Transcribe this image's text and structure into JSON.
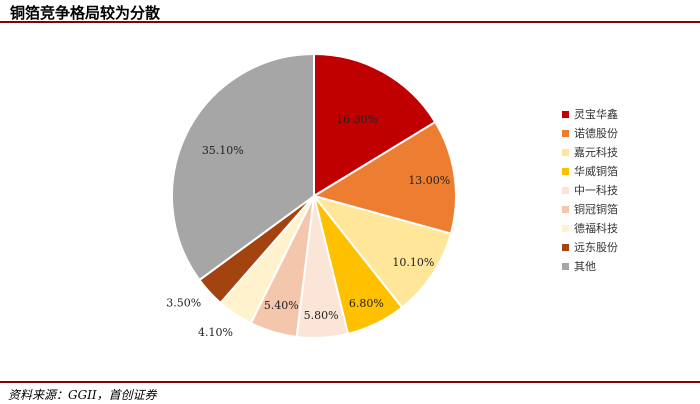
{
  "header": {
    "title": "铜箔竞争格局较为分散"
  },
  "footer": {
    "source": "资料来源：GGII，首创证券"
  },
  "chart_data": {
    "type": "pie",
    "title": "",
    "legend_position": "right",
    "slices": [
      {
        "name": "灵宝华鑫",
        "value": 16.3,
        "label": "16.30%",
        "color": "#c00000"
      },
      {
        "name": "诺德股份",
        "value": 13.0,
        "label": "13.00%",
        "color": "#ed7d31"
      },
      {
        "name": "嘉元科技",
        "value": 10.1,
        "label": "10.10%",
        "color": "#ffe699"
      },
      {
        "name": "华威铜箔",
        "value": 6.8,
        "label": "6.80%",
        "color": "#ffc000"
      },
      {
        "name": "中一科技",
        "value": 5.8,
        "label": "5.80%",
        "color": "#fbe5d6"
      },
      {
        "name": "铜冠铜箔",
        "value": 5.4,
        "label": "5.40%",
        "color": "#f4c7ac"
      },
      {
        "name": "德福科技",
        "value": 4.1,
        "label": "4.10%",
        "color": "#fff2cc"
      },
      {
        "name": "远东股份",
        "value": 3.5,
        "label": "3.50%",
        "color": "#a34410"
      },
      {
        "name": "其他",
        "value": 35.1,
        "label": "35.10%",
        "color": "#a6a6a6"
      }
    ]
  }
}
